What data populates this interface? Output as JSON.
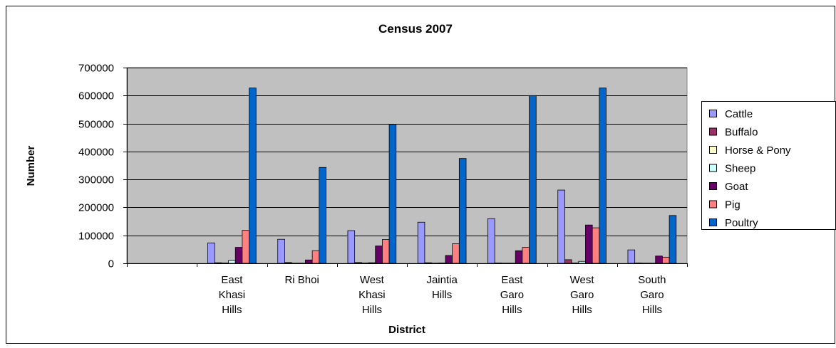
{
  "chart_data": {
    "type": "bar",
    "title": "Census 2007",
    "xlabel": "District",
    "ylabel": "Number",
    "ylim": [
      0,
      700000
    ],
    "yticks": [
      0,
      100000,
      200000,
      300000,
      400000,
      500000,
      600000,
      700000
    ],
    "grid": true,
    "legend_position": "right",
    "categories": [
      "",
      "East Khasi Hills",
      "Ri Bhoi",
      "West Khasi Hills",
      "Jaintia Hills",
      "East Garo Hills",
      "West Garo Hills",
      "South Garo Hills"
    ],
    "category_lines": [
      [],
      [
        "East",
        "Khasi",
        "Hills"
      ],
      [
        "Ri Bhoi"
      ],
      [
        "West",
        "Khasi",
        "Hills"
      ],
      [
        "Jaintia",
        "Hills"
      ],
      [
        "East",
        "Garo",
        "Hills"
      ],
      [
        "West",
        "Garo",
        "Hills"
      ],
      [
        "South",
        "Garo",
        "Hills"
      ]
    ],
    "series": [
      {
        "name": "Cattle",
        "color": "#9999FF",
        "values": [
          0,
          73000,
          86000,
          117000,
          147000,
          160000,
          262000,
          48000
        ]
      },
      {
        "name": "Buffalo",
        "color": "#993366",
        "values": [
          0,
          2000,
          3000,
          3000,
          2000,
          1000,
          13000,
          1000
        ]
      },
      {
        "name": "Horse & Pony",
        "color": "#FFFFCC",
        "values": [
          0,
          1000,
          500,
          1000,
          500,
          500,
          1000,
          500
        ]
      },
      {
        "name": "Sheep",
        "color": "#CCFFFF",
        "values": [
          0,
          10000,
          500,
          2000,
          1000,
          500,
          7000,
          500
        ]
      },
      {
        "name": "Goat",
        "color": "#660066",
        "values": [
          0,
          57000,
          12000,
          62000,
          28000,
          45000,
          137000,
          26000
        ]
      },
      {
        "name": "Pig",
        "color": "#FF8080",
        "values": [
          0,
          118000,
          45000,
          85000,
          70000,
          57000,
          127000,
          22000
        ]
      },
      {
        "name": "Poultry",
        "color": "#0066CC",
        "values": [
          0,
          627000,
          343000,
          497000,
          375000,
          600000,
          627000,
          171000
        ]
      }
    ]
  }
}
